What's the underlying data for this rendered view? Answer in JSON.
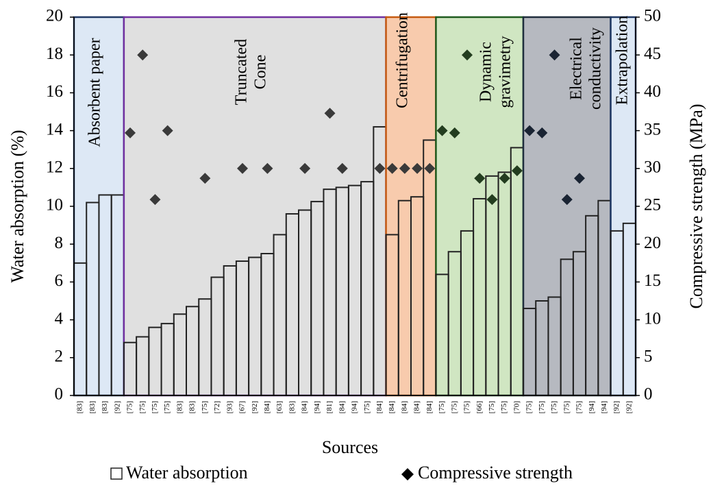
{
  "chart_data": {
    "type": "bar",
    "xlabel": "Sources",
    "ylabel": "Water absorption (%)",
    "y2label": "Compressive strength (MPa)",
    "ylim": [
      0,
      20
    ],
    "yticks": [
      0,
      2,
      4,
      6,
      8,
      10,
      12,
      14,
      16,
      18,
      20
    ],
    "y2lim": [
      0,
      50
    ],
    "y2ticks": [
      0,
      5,
      10,
      15,
      20,
      25,
      30,
      35,
      40,
      45,
      50
    ],
    "series": [
      {
        "name": "Water absorption",
        "color": "#222222"
      },
      {
        "name": "Compressive strength",
        "axis": "y2",
        "color": "#000000"
      }
    ],
    "groups": [
      {
        "label": [
          "Absorbent paper"
        ],
        "fill": "#dde8f5",
        "border": "#1f3864",
        "marker_color": "#333333",
        "categories": [
          "[83]",
          "[83]",
          "[83]",
          "[92]"
        ],
        "values": [
          7.0,
          10.2,
          10.6,
          10.6
        ],
        "strength": [
          null,
          null,
          null,
          null
        ]
      },
      {
        "label": [
          "Truncated",
          "Cone"
        ],
        "fill": "#e0e0e0",
        "border": "#7030a0",
        "marker_color": "#3a3a3a",
        "categories": [
          "[75]",
          "[75]",
          "[75]",
          "[75]",
          "[83]",
          "[83]",
          "[75]",
          "[72]",
          "[93]",
          "[67]",
          "[92]",
          "[84]",
          "[63]",
          "[83]",
          "[84]",
          "[94]",
          "[81]",
          "[84]",
          "[94]",
          "[75]",
          "[84]"
        ],
        "values": [
          2.8,
          3.1,
          3.6,
          3.8,
          4.3,
          4.7,
          5.1,
          6.25,
          6.85,
          7.1,
          7.3,
          7.5,
          8.5,
          9.6,
          9.8,
          10.25,
          10.9,
          11.0,
          11.1,
          11.3,
          14.2
        ],
        "strength": [
          34.7,
          45,
          25.9,
          35,
          null,
          null,
          28.7,
          null,
          null,
          30,
          null,
          30,
          null,
          null,
          30,
          null,
          37.3,
          30,
          null,
          null,
          30
        ]
      },
      {
        "label": [
          "Centrifugation"
        ],
        "fill": "#f8cbad",
        "border": "#c55a11",
        "marker_color": "#3a3a3a",
        "categories": [
          "[84]",
          "[84]",
          "[84]",
          "[84]"
        ],
        "values": [
          8.5,
          10.3,
          10.5,
          13.5
        ],
        "strength": [
          30,
          30,
          30,
          30
        ]
      },
      {
        "label": [
          "Dynamic",
          "gravimetry"
        ],
        "fill": "#d0e6c2",
        "border": "#1e5a1e",
        "marker_color": "#233d1f",
        "categories": [
          "[75]",
          "[75]",
          "[75]",
          "[66]",
          "[75]",
          "[75]",
          "[70]"
        ],
        "values": [
          6.4,
          7.6,
          8.7,
          10.4,
          11.6,
          11.8,
          13.1
        ],
        "strength": [
          35,
          34.7,
          45,
          28.7,
          25.9,
          28.7,
          29.7
        ]
      },
      {
        "label": [
          "Electrical",
          "conductivity"
        ],
        "fill": "#b6b9c0",
        "border": "#1f2d3d",
        "marker_color": "#1a2433",
        "categories": [
          "[75]",
          "[75]",
          "[75]",
          "[75]",
          "[75]",
          "[94]",
          "[94]"
        ],
        "values": [
          4.6,
          5.0,
          5.2,
          7.2,
          7.6,
          9.5,
          10.3
        ],
        "strength": [
          35,
          34.7,
          45,
          25.9,
          28.7,
          null,
          null
        ]
      },
      {
        "label": [
          "Extrapolation"
        ],
        "fill": "#dde8f5",
        "border": "#1f3864",
        "marker_color": "#333333",
        "categories": [
          "[92]",
          "[92]"
        ],
        "values": [
          8.7,
          9.1
        ],
        "strength": [
          null,
          null
        ]
      }
    ]
  }
}
